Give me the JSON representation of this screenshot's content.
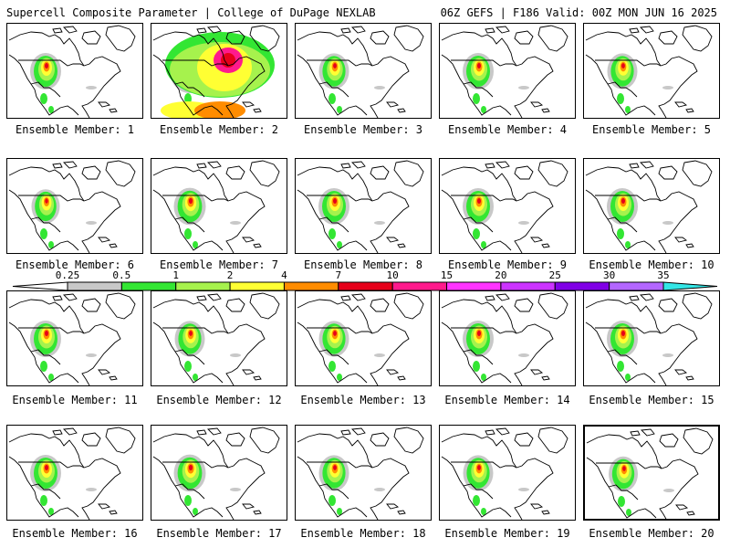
{
  "header": {
    "title": "Supercell Composite Parameter | College of DuPage NEXLAB",
    "run_info": "06Z GEFS | F186 Valid: 00Z MON JUN 16 2025"
  },
  "panels": [
    {
      "label": "Ensemble Member: 1",
      "intensity": 0.5
    },
    {
      "label": "Ensemble Member: 2",
      "intensity": 1.0
    },
    {
      "label": "Ensemble Member: 3",
      "intensity": 0.45
    },
    {
      "label": "Ensemble Member: 4",
      "intensity": 0.5
    },
    {
      "label": "Ensemble Member: 5",
      "intensity": 0.45
    },
    {
      "label": "Ensemble Member: 6",
      "intensity": 0.35
    },
    {
      "label": "Ensemble Member: 7",
      "intensity": 0.55
    },
    {
      "label": "Ensemble Member: 8",
      "intensity": 0.5
    },
    {
      "label": "Ensemble Member: 9",
      "intensity": 0.5
    },
    {
      "label": "Ensemble Member: 10",
      "intensity": 0.5
    },
    {
      "label": "Ensemble Member: 11",
      "intensity": 0.5
    },
    {
      "label": "Ensemble Member: 12",
      "intensity": 0.45
    },
    {
      "label": "Ensemble Member: 13",
      "intensity": 0.45
    },
    {
      "label": "Ensemble Member: 14",
      "intensity": 0.5
    },
    {
      "label": "Ensemble Member: 15",
      "intensity": 0.5
    },
    {
      "label": "Ensemble Member: 16",
      "intensity": 0.5
    },
    {
      "label": "Ensemble Member: 17",
      "intensity": 0.55
    },
    {
      "label": "Ensemble Member: 18",
      "intensity": 0.45
    },
    {
      "label": "Ensemble Member: 19",
      "intensity": 0.45
    },
    {
      "label": "Ensemble Member: 20",
      "intensity": 0.4
    }
  ],
  "colorbar": {
    "labels": [
      "0.25",
      "0.5",
      "1",
      "2",
      "4",
      "7",
      "10",
      "15",
      "20",
      "25",
      "30",
      "35"
    ],
    "colors": [
      "#ffffff",
      "#c8c8c8",
      "#33e633",
      "#a6f24d",
      "#ffff33",
      "#ff8c00",
      "#e6001a",
      "#ff1a8c",
      "#ff33ff",
      "#cc33ff",
      "#8000e6",
      "#b366ff",
      "#33e6e6"
    ]
  }
}
